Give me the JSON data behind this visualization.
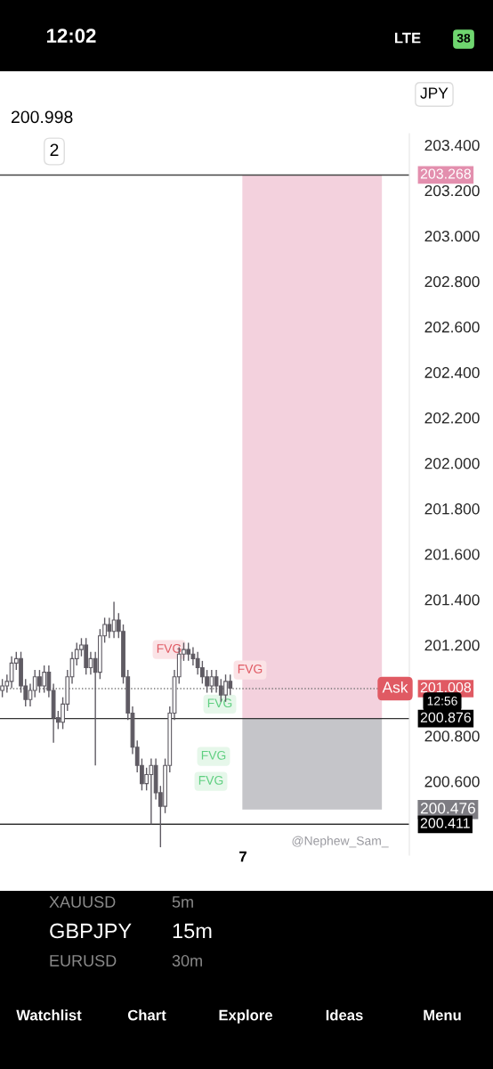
{
  "chart_data": {
    "type": "candlestick",
    "color": "#5f5b63",
    "categories": [
      null,
      null,
      null,
      null,
      null,
      null,
      null,
      null,
      null,
      null,
      null,
      null,
      null,
      null,
      null,
      null,
      null,
      null,
      null,
      null,
      null,
      null,
      null,
      null,
      null,
      null,
      null,
      null,
      null,
      null,
      null,
      null,
      null,
      null,
      null,
      null,
      null,
      null,
      null,
      null,
      null,
      null,
      null,
      null,
      null,
      null,
      null,
      null,
      null,
      null,
      null,
      null,
      null,
      null,
      null,
      null,
      null,
      null,
      null,
      null,
      null,
      null,
      null,
      null,
      null,
      null,
      null,
      null,
      null,
      null,
      null,
      null,
      null,
      null,
      null,
      null,
      null,
      null,
      null,
      null,
      null,
      null,
      null,
      null,
      null,
      null,
      null,
      null
    ],
    "ohlc": [
      [
        201.0,
        201.05,
        200.97,
        201.02
      ],
      [
        201.02,
        201.07,
        200.99,
        201.04
      ],
      [
        201.04,
        201.15,
        201.01,
        201.12
      ],
      [
        201.12,
        201.17,
        201.09,
        201.14
      ],
      [
        201.14,
        201.17,
        200.99,
        201.02
      ],
      [
        201.02,
        201.05,
        200.93,
        200.96
      ],
      [
        200.96,
        201.03,
        200.93,
        201.0
      ],
      [
        201.0,
        201.09,
        200.97,
        201.06
      ],
      [
        201.06,
        201.09,
        200.99,
        201.02
      ],
      [
        201.02,
        201.11,
        200.99,
        201.08
      ],
      [
        201.08,
        201.11,
        200.97,
        201.0
      ],
      [
        201.0,
        201.03,
        200.77,
        200.88
      ],
      [
        200.88,
        200.91,
        200.83,
        200.86
      ],
      [
        200.86,
        200.97,
        200.83,
        200.94
      ],
      [
        200.94,
        201.09,
        200.91,
        201.06
      ],
      [
        201.06,
        201.17,
        201.03,
        201.14
      ],
      [
        201.14,
        201.21,
        201.11,
        201.18
      ],
      [
        201.18,
        201.23,
        201.15,
        201.2
      ],
      [
        201.2,
        201.23,
        201.07,
        201.1
      ],
      [
        201.1,
        201.17,
        201.07,
        201.14
      ],
      [
        201.14,
        201.17,
        200.67,
        201.08
      ],
      [
        201.08,
        201.27,
        201.05,
        201.24
      ],
      [
        201.24,
        201.32,
        201.21,
        201.29
      ],
      [
        201.29,
        201.32,
        201.23,
        201.26
      ],
      [
        201.26,
        201.39,
        201.23,
        201.31
      ],
      [
        201.31,
        201.34,
        201.23,
        201.26
      ],
      [
        201.26,
        201.29,
        201.03,
        201.06
      ],
      [
        201.06,
        201.09,
        200.87,
        200.9
      ],
      [
        200.9,
        200.93,
        200.72,
        200.75
      ],
      [
        200.75,
        200.78,
        200.64,
        200.67
      ],
      [
        200.67,
        200.7,
        200.56,
        200.59
      ],
      [
        200.59,
        200.66,
        200.56,
        200.63
      ],
      [
        200.63,
        200.7,
        200.41,
        200.67
      ],
      [
        200.67,
        200.7,
        200.52,
        200.55
      ],
      [
        200.55,
        200.58,
        200.31,
        200.49
      ],
      [
        200.49,
        200.7,
        200.46,
        200.67
      ],
      [
        200.67,
        200.93,
        200.64,
        200.9
      ],
      [
        200.9,
        201.09,
        200.87,
        201.06
      ],
      [
        201.06,
        201.19,
        201.03,
        201.16
      ],
      [
        201.16,
        201.21,
        201.13,
        201.18
      ],
      [
        201.18,
        201.21,
        201.13,
        201.16
      ],
      [
        201.16,
        201.19,
        201.11,
        201.14
      ],
      [
        201.14,
        201.17,
        201.07,
        201.1
      ],
      [
        201.1,
        201.13,
        201.03,
        201.06
      ],
      [
        201.06,
        201.09,
        200.99,
        201.02
      ],
      [
        201.02,
        201.09,
        200.99,
        201.06
      ],
      [
        201.06,
        201.09,
        200.99,
        201.02
      ],
      [
        201.02,
        201.05,
        200.95,
        200.98
      ],
      [
        200.98,
        201.07,
        200.95,
        201.04
      ],
      [
        201.04,
        201.07,
        200.98,
        201.01
      ],
      null,
      null,
      null,
      null,
      null,
      null,
      null,
      null,
      null,
      null,
      null,
      null,
      null,
      null,
      null,
      null,
      null,
      null,
      null,
      null,
      null,
      null,
      null,
      null,
      null,
      null,
      null,
      null,
      null,
      null,
      null,
      null,
      null,
      null,
      null,
      null,
      null,
      null
    ],
    "ylim": [
      200.275,
      203.45
    ],
    "yticks": [
      {
        "value": 200.6,
        "label": "200.600"
      },
      {
        "value": 200.8,
        "label": "200.800"
      },
      {
        "value": 201.0,
        "label": null
      },
      {
        "value": 201.2,
        "label": "201.200"
      },
      {
        "value": 201.4,
        "label": "201.400"
      },
      {
        "value": 201.6,
        "label": "201.600"
      },
      {
        "value": 201.8,
        "label": "201.800"
      },
      {
        "value": 202.0,
        "label": "202.000"
      },
      {
        "value": 202.2,
        "label": "202.200"
      },
      {
        "value": 202.4,
        "label": "202.400"
      },
      {
        "value": 202.6,
        "label": "202.600"
      },
      {
        "value": 202.8,
        "label": "202.800"
      },
      {
        "value": 203.0,
        "label": "203.000"
      },
      {
        "value": 203.2,
        "label": "203.200"
      },
      {
        "value": 203.4,
        "label": "203.400"
      }
    ],
    "ref_lines": [
      {
        "axis": "y",
        "value": 203.268,
        "label": "203.268",
        "color": "#444444",
        "line_style": "solid"
      },
      {
        "axis": "y",
        "value": 201.008,
        "label": "201.008",
        "color": "#777777",
        "line_style": "dotted"
      },
      {
        "axis": "y",
        "value": 200.876,
        "label": "200.876",
        "color": "#333333",
        "line_style": "solid"
      },
      {
        "axis": "y",
        "value": 200.411,
        "label": "200.411",
        "color": "#333333",
        "line_style": "solid"
      }
    ],
    "bands": [
      {
        "axis": "y",
        "from": 200.876,
        "to": 203.268,
        "color": "#f3d1dd"
      },
      {
        "axis": "y",
        "from": 200.476,
        "to": 200.876,
        "label": "200.476",
        "color": "#c5c5c9"
      }
    ],
    "annotations": [
      "12:02",
      "LTE",
      "38",
      "200.998",
      "2",
      "JPY",
      "Ask",
      "12:56",
      "7",
      "@Nephew_Sam_",
      "XAUUSD",
      "5m",
      "GBPJPY",
      "15m",
      "EURUSD",
      "30m",
      "Watchlist",
      "Chart",
      "Explore",
      "Ideas",
      "Menu",
      {
        "text": "FVG",
        "y": 201.18
      },
      {
        "text": "FVG",
        "y": 201.09
      },
      {
        "text": "FVG",
        "y": 200.94
      },
      {
        "text": "FVG",
        "y": 200.71
      },
      {
        "text": "FVG",
        "y": 200.6
      }
    ]
  }
}
